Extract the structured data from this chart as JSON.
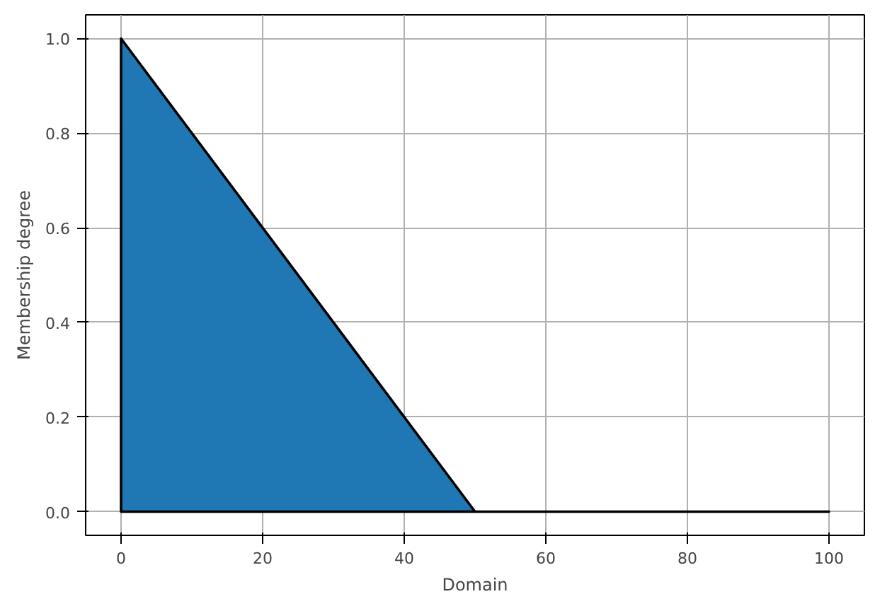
{
  "chart_data": {
    "type": "area",
    "xlabel": "Domain",
    "ylabel": "Membership degree",
    "series": [
      {
        "color": "#1f77b4",
        "x": [
          0,
          50,
          100
        ],
        "values": [
          1,
          0,
          0
        ]
      }
    ],
    "xlim": [
      -5,
      105
    ],
    "ylim": [
      -0.05,
      1.05
    ],
    "xticks": [
      0,
      20,
      40,
      60,
      80,
      100
    ],
    "yticks": [
      {
        "value": 0,
        "label": "0.0"
      },
      {
        "value": 0.2,
        "label": "0.2"
      },
      {
        "value": 0.4,
        "label": "0.4"
      },
      {
        "value": 0.6,
        "label": "0.6"
      },
      {
        "value": 0.8,
        "label": "0.8"
      },
      {
        "value": 1,
        "label": "1.0"
      }
    ],
    "grid": true,
    "line_style": "solid"
  }
}
